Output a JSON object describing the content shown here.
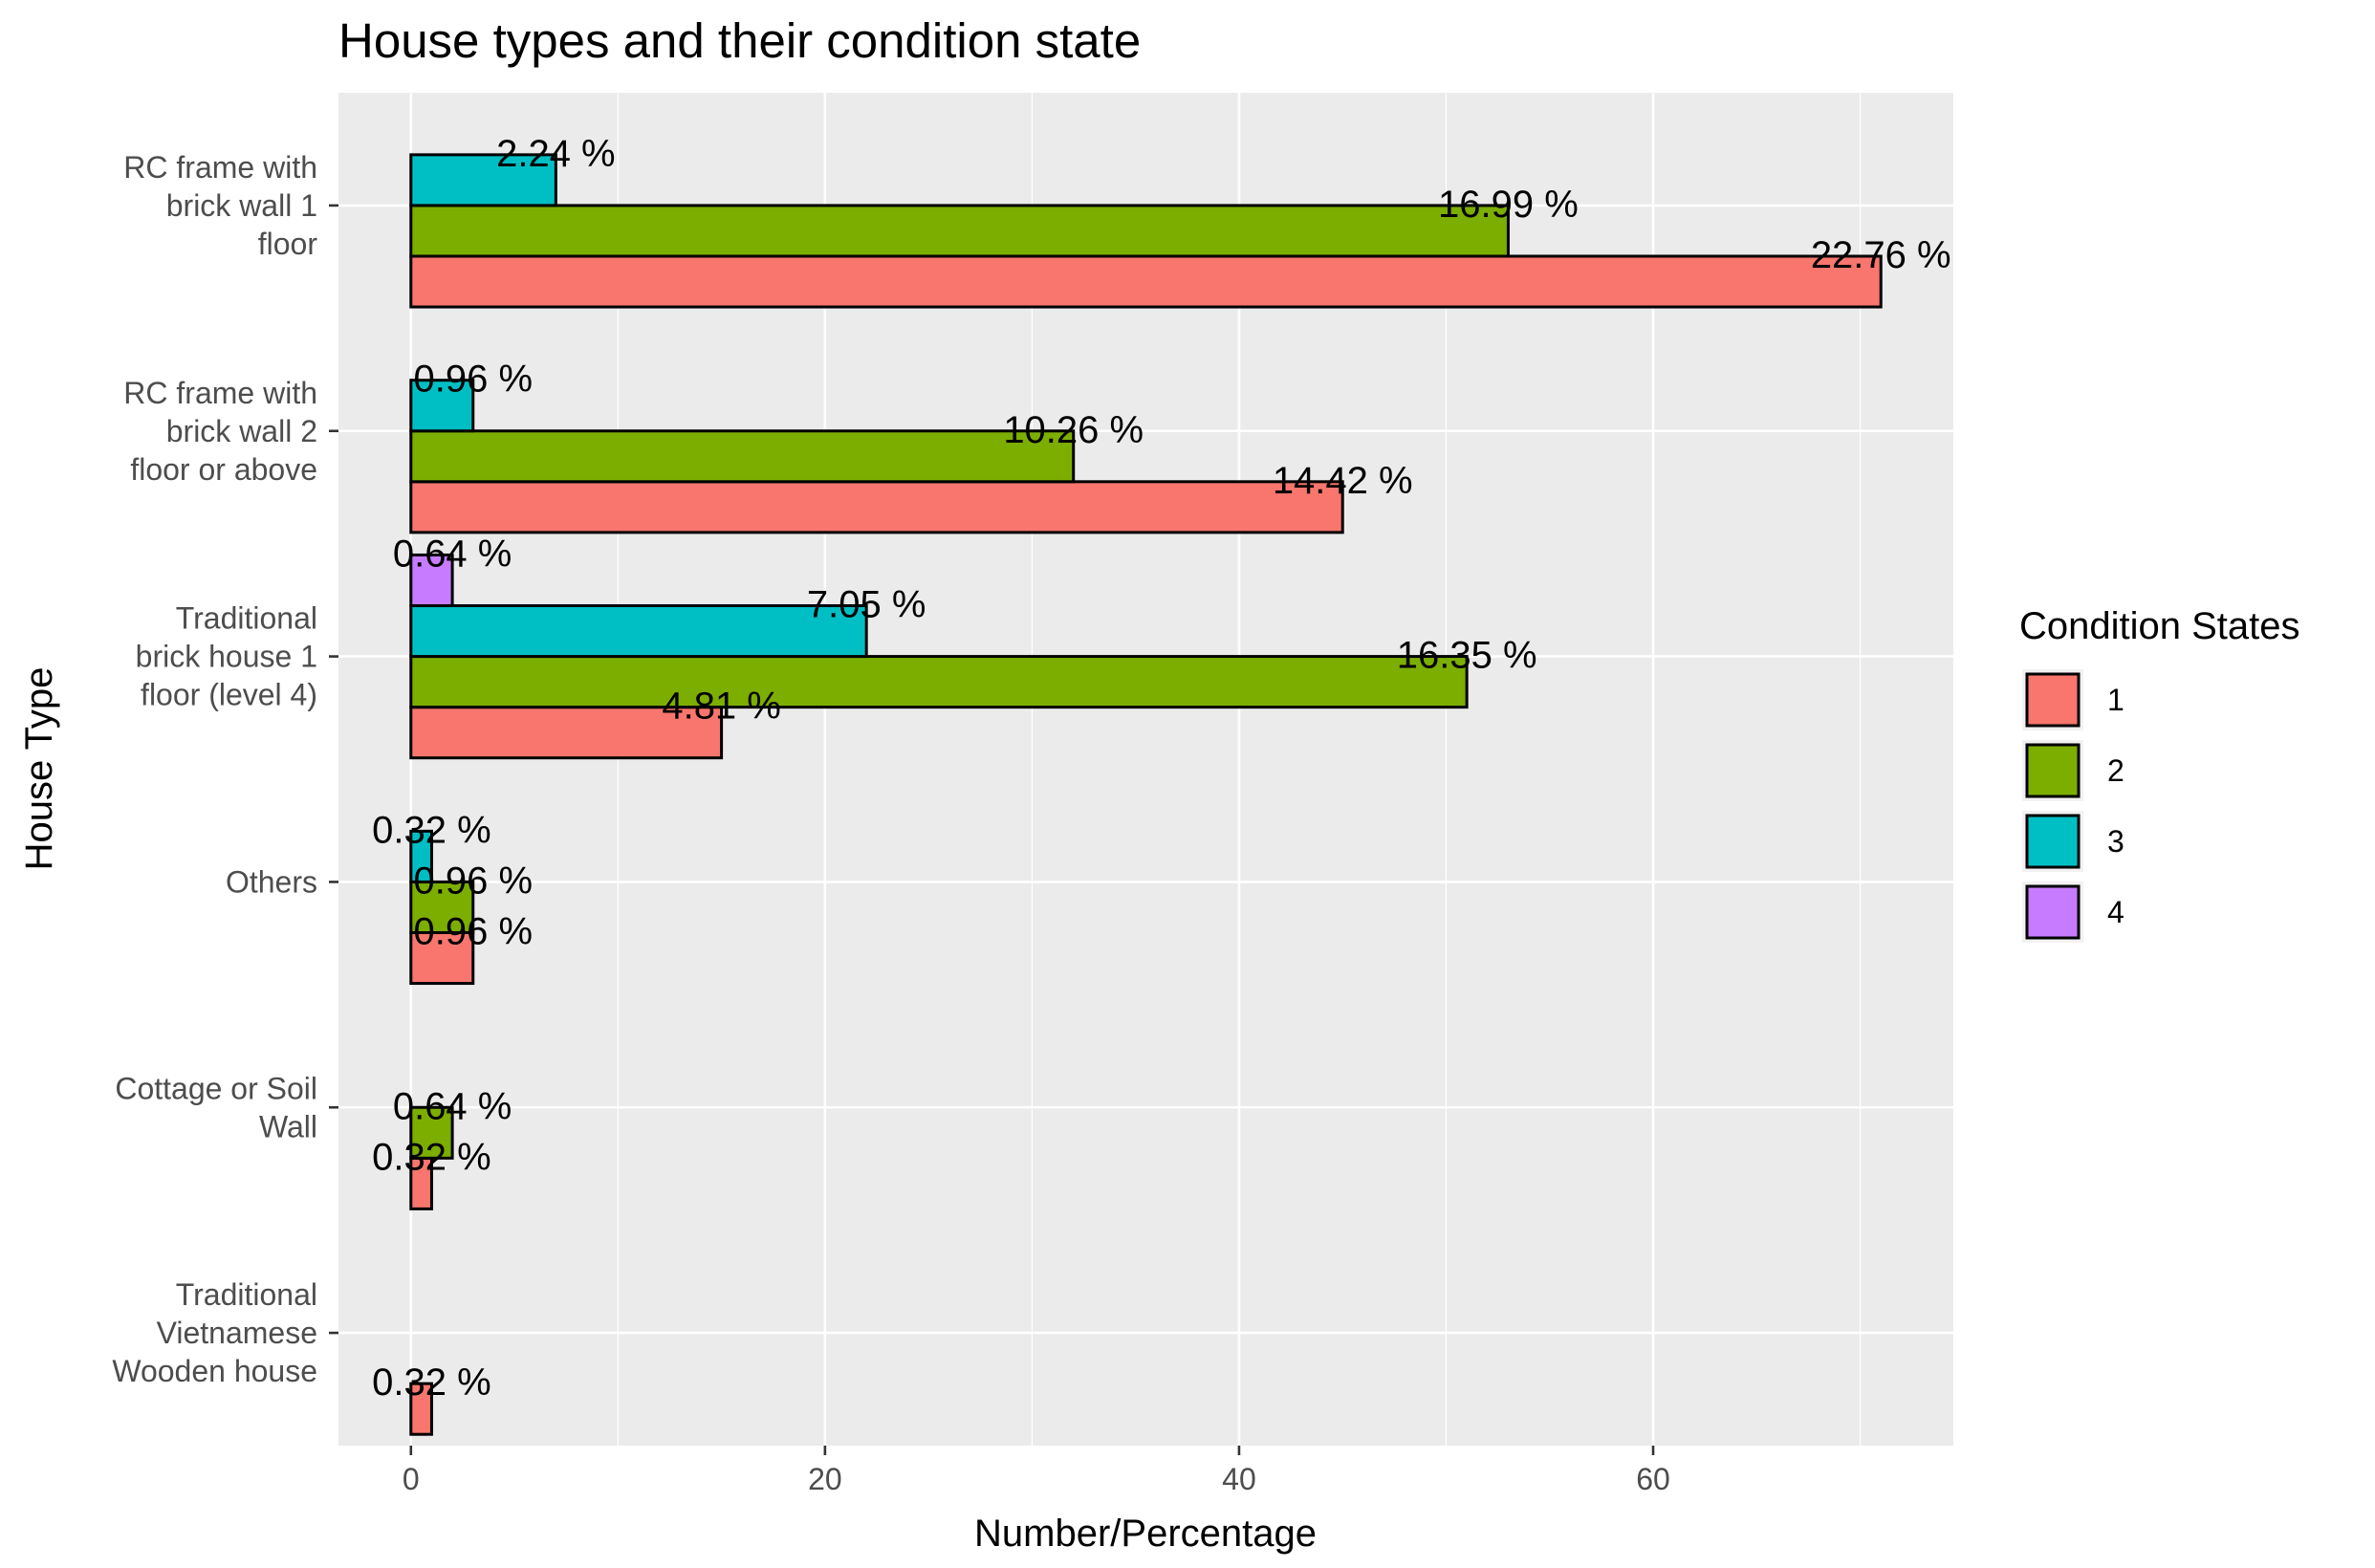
{
  "chart_data": {
    "type": "bar",
    "orientation": "horizontal",
    "title": "House types and their condition state",
    "xlabel": "Number/Percentage",
    "ylabel": "House Type",
    "xlim": [
      -3.5,
      74.5
    ],
    "x_ticks": [
      0,
      20,
      40,
      60
    ],
    "x_tick_labels": [
      "0",
      "20",
      "40",
      "60"
    ],
    "grid": true,
    "legend": {
      "title": "Condition States",
      "position": "right"
    },
    "categories": [
      [
        "RC frame with",
        "brick wall 1",
        "floor"
      ],
      [
        "RC frame with",
        "brick wall 2",
        "floor or above"
      ],
      [
        "Traditional",
        "brick house 1",
        "floor (level 4)"
      ],
      [
        "Others"
      ],
      [
        "Cottage or Soil",
        "Wall"
      ],
      [
        "Traditional",
        "Vietnamese",
        "Wooden house"
      ]
    ],
    "series": [
      {
        "name": "1",
        "color": "#F8766D",
        "values": [
          71,
          45,
          15,
          3,
          1,
          1
        ],
        "labels": [
          "22.76 %",
          "14.42 %",
          "4.81 %",
          "0.96 %",
          "0.32 %",
          "0.32 %"
        ]
      },
      {
        "name": "2",
        "color": "#7CAE00",
        "values": [
          53,
          32,
          51,
          3,
          2,
          null
        ],
        "labels": [
          "16.99 %",
          "10.26 %",
          "16.35 %",
          "0.96 %",
          "0.64 %",
          null
        ]
      },
      {
        "name": "3",
        "color": "#00BFC4",
        "values": [
          7,
          3,
          22,
          1,
          null,
          null
        ],
        "labels": [
          "2.24 %",
          "0.96 %",
          "7.05 %",
          "0.32 %",
          null,
          null
        ]
      },
      {
        "name": "4",
        "color": "#C77CFF",
        "values": [
          null,
          null,
          2,
          null,
          null,
          null
        ],
        "labels": [
          null,
          null,
          "0.64 %",
          null,
          null,
          null
        ]
      }
    ]
  }
}
